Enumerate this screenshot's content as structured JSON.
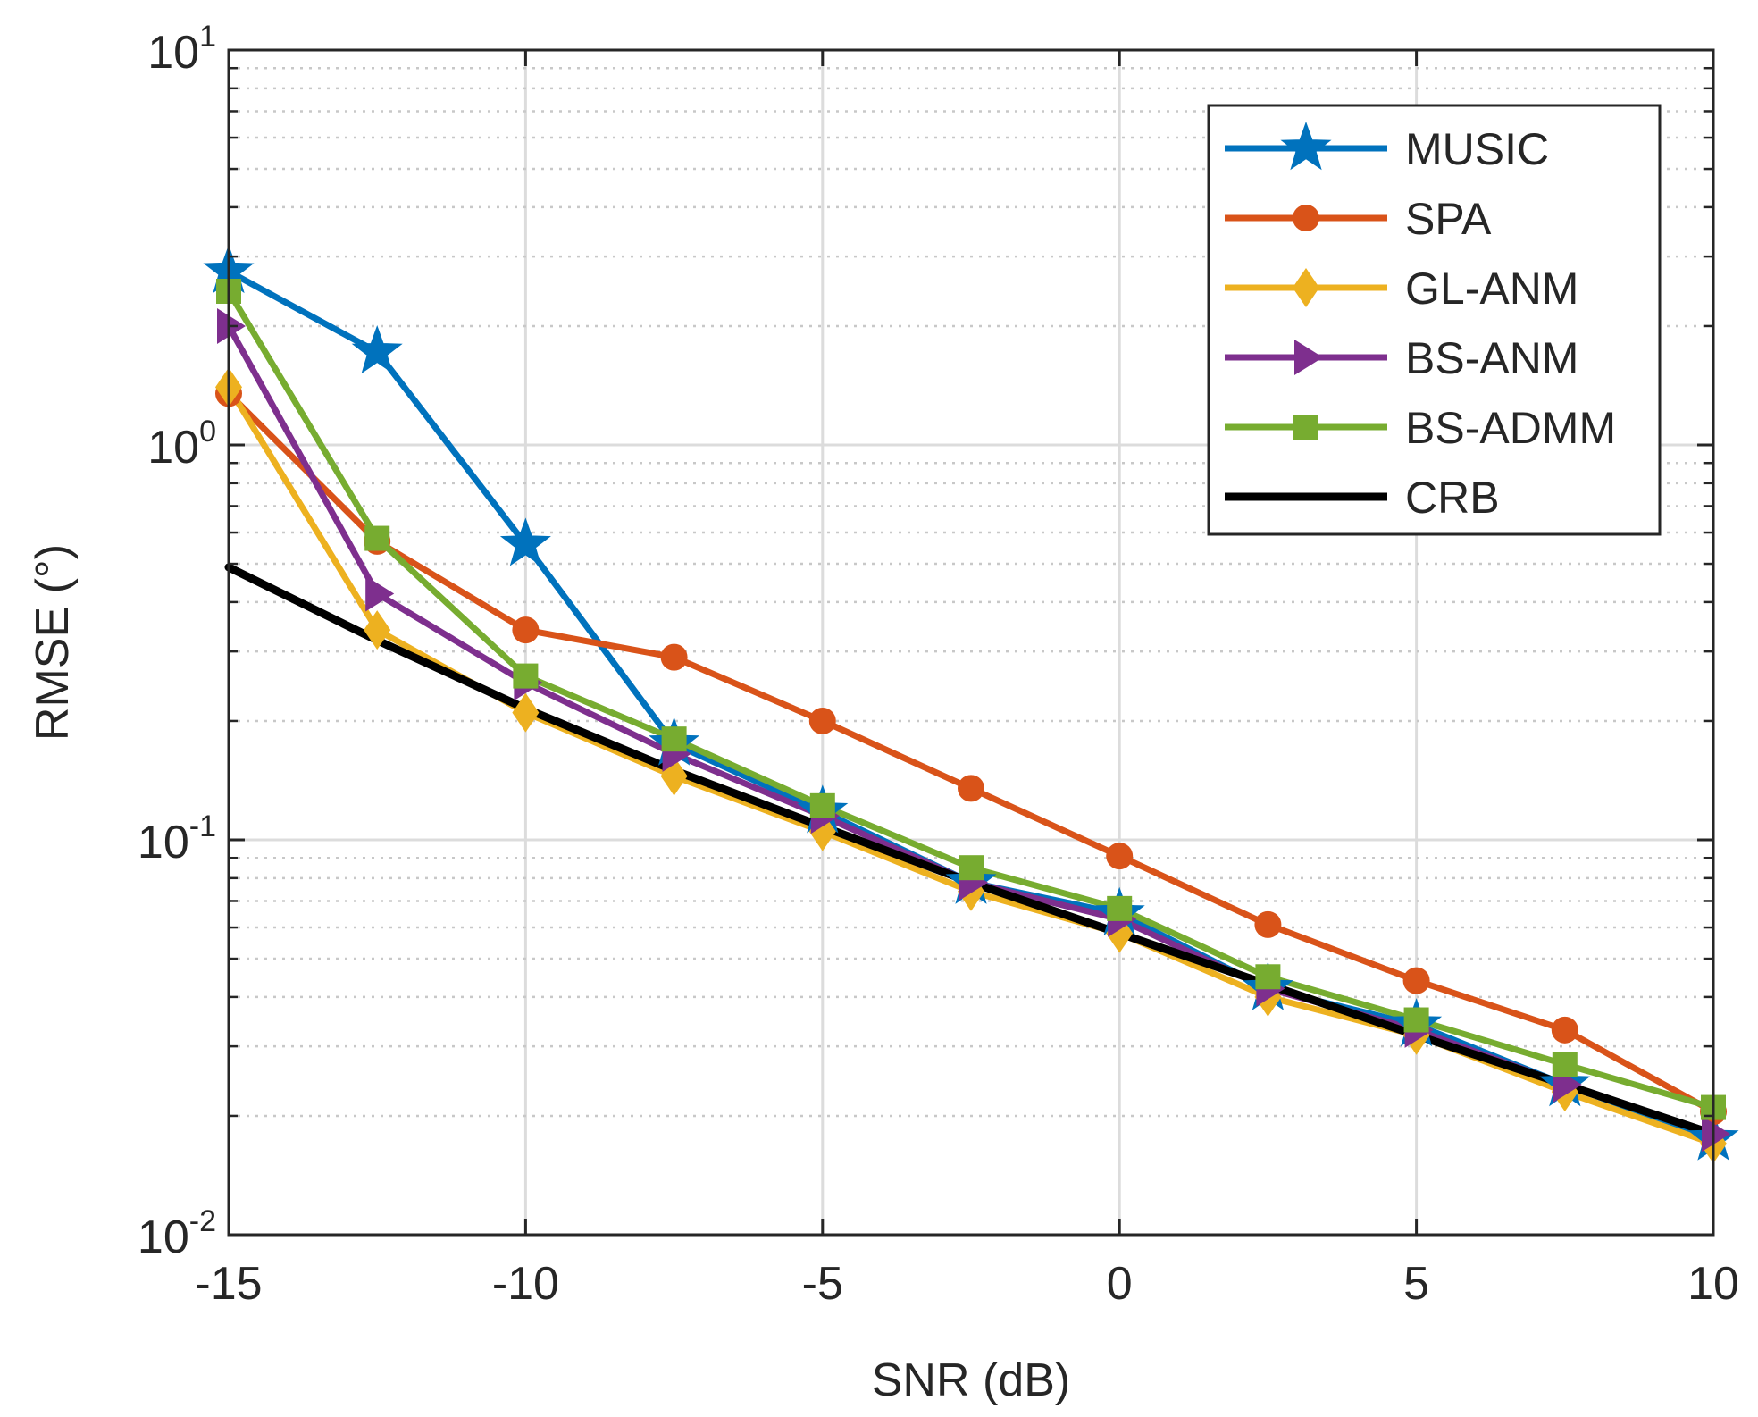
{
  "chart_data": {
    "type": "line",
    "title": "",
    "xlabel": "SNR (dB)",
    "ylabel": "RMSE (°)",
    "ylabel_parts": {
      "text": "RMSE (",
      "unit": "°",
      "close": ")"
    },
    "yscale": "log",
    "xlim": [
      -15,
      10
    ],
    "ylim": [
      0.01,
      10
    ],
    "grid": true,
    "legend_position": "top-right",
    "x_ticks": [
      {
        "value": -15,
        "label": "-15"
      },
      {
        "value": -10,
        "label": "-10"
      },
      {
        "value": -5,
        "label": "-5"
      },
      {
        "value": 0,
        "label": "0"
      },
      {
        "value": 5,
        "label": "5"
      },
      {
        "value": 10,
        "label": "10"
      }
    ],
    "y_ticks": [
      {
        "value": 10,
        "base": "10",
        "exp": "1"
      },
      {
        "value": 1,
        "base": "10",
        "exp": "0"
      },
      {
        "value": 0.1,
        "base": "10",
        "exp": "-1"
      },
      {
        "value": 0.01,
        "base": "10",
        "exp": "-2"
      }
    ],
    "x": [
      -15,
      -12.5,
      -10,
      -7.5,
      -5,
      -2.5,
      0,
      2.5,
      5,
      7.5,
      10
    ],
    "series": [
      {
        "name": "MUSIC",
        "color": "#0072BD",
        "marker": "star",
        "values": [
          2.75,
          1.72,
          0.56,
          0.175,
          0.118,
          0.078,
          0.065,
          0.042,
          0.034,
          0.024,
          0.0175
        ]
      },
      {
        "name": "SPA",
        "color": "#D95319",
        "marker": "circle",
        "values": [
          1.35,
          0.57,
          0.34,
          0.29,
          0.2,
          0.135,
          0.091,
          0.061,
          0.044,
          0.033,
          0.0205
        ]
      },
      {
        "name": "GL-ANM",
        "color": "#EDB120",
        "marker": "diamond",
        "values": [
          1.4,
          0.34,
          0.21,
          0.145,
          0.105,
          0.074,
          0.058,
          0.04,
          0.032,
          0.023,
          0.017
        ]
      },
      {
        "name": "BS-ANM",
        "color": "#7E2F8E",
        "marker": "triangle-right",
        "values": [
          2.0,
          0.42,
          0.25,
          0.165,
          0.115,
          0.078,
          0.063,
          0.042,
          0.033,
          0.024,
          0.018
        ]
      },
      {
        "name": "BS-ADMM",
        "color": "#77AC30",
        "marker": "square",
        "values": [
          2.45,
          0.58,
          0.26,
          0.18,
          0.122,
          0.085,
          0.067,
          0.045,
          0.035,
          0.027,
          0.021
        ]
      },
      {
        "name": "CRB",
        "color": "#000000",
        "marker": "none",
        "values": [
          0.49,
          0.32,
          0.215,
          0.15,
          0.108,
          0.078,
          0.058,
          0.043,
          0.032,
          0.024,
          0.018
        ]
      }
    ]
  }
}
